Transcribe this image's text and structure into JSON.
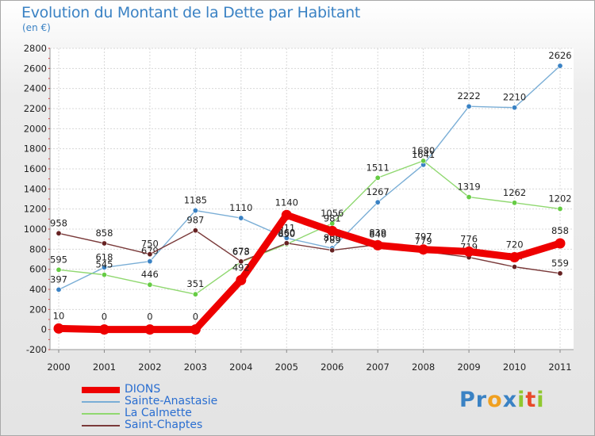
{
  "chart_data": {
    "type": "line",
    "title": "Evolution du Montant de la Dette par Habitant",
    "subtitle": "(en €)",
    "xlabel": "",
    "ylabel": "",
    "x": [
      "2000",
      "2001",
      "2002",
      "2003",
      "2004",
      "2005",
      "2006",
      "2007",
      "2008",
      "2009",
      "2010",
      "2011"
    ],
    "ylim": [
      -200,
      2800
    ],
    "yticks": [
      -200,
      0,
      200,
      400,
      600,
      800,
      1000,
      1200,
      1400,
      1600,
      1800,
      2000,
      2200,
      2400,
      2600,
      2800
    ],
    "ytick_labels": [
      "-200",
      "0",
      "200",
      "400",
      "600",
      "800",
      "1000",
      "1200",
      "1400",
      "1600",
      "1800",
      "2000",
      "2200",
      "2400",
      "2600",
      "2800"
    ],
    "grid": true,
    "legend_position": "bottom-left",
    "series": [
      {
        "name": "Sainte-Anastasie",
        "color": "#7aaed6",
        "marker": "#3a82c4",
        "values": [
          397,
          618,
          679,
          1185,
          1110,
          911,
          809,
          1267,
          1641,
          2222,
          2210,
          2626
        ],
        "labels": [
          "397",
          "618",
          "679",
          "1185",
          "1110",
          "911",
          "809",
          "1267",
          "1641",
          "2222",
          "2210",
          "2626"
        ]
      },
      {
        "name": "La Calmette",
        "color": "#90d870",
        "marker": "#66cc44",
        "values": [
          595,
          545,
          446,
          351,
          673,
          850,
          1056,
          1511,
          1680,
          1319,
          1262,
          1202
        ],
        "labels": [
          "595",
          "545",
          "446",
          "351",
          "673",
          "850",
          "1056",
          "1511",
          "1680",
          "1319",
          "1262",
          "1202"
        ]
      },
      {
        "name": "Saint-Chaptes",
        "color": "#7a3a3a",
        "marker": "#662222",
        "values": [
          958,
          858,
          750,
          987,
          678,
          860,
          789,
          846,
          779,
          719,
          624,
          559
        ],
        "labels": [
          "958",
          "858",
          "750",
          "987",
          "678",
          "860",
          "789",
          "846",
          "779",
          "719",
          "624",
          "559"
        ]
      },
      {
        "name": "DIONS",
        "color": "#ee0000",
        "marker": "#ee0000",
        "values": [
          10,
          0,
          0,
          0,
          492,
          1140,
          981,
          839,
          797,
          776,
          720,
          858
        ],
        "labels": [
          "10",
          "0",
          "0",
          "0",
          "492",
          "1140",
          "981",
          "839",
          "797",
          "776",
          "720",
          "858"
        ]
      }
    ]
  },
  "legend": {
    "items": [
      {
        "name": "DIONS",
        "color": "#ee0000"
      },
      {
        "name": "Sainte-Anastasie",
        "color": "#7aaed6"
      },
      {
        "name": "La Calmette",
        "color": "#90d870"
      },
      {
        "name": "Saint-Chaptes",
        "color": "#7a3a3a"
      }
    ]
  },
  "logo": {
    "letters": [
      "P",
      "r",
      "o",
      "x",
      "i",
      "t",
      "i"
    ],
    "colors": [
      "#3a82c4",
      "#3a82c4",
      "#f0a020",
      "#3a82c4",
      "#90c830",
      "#e84a2a",
      "#90c830"
    ]
  }
}
